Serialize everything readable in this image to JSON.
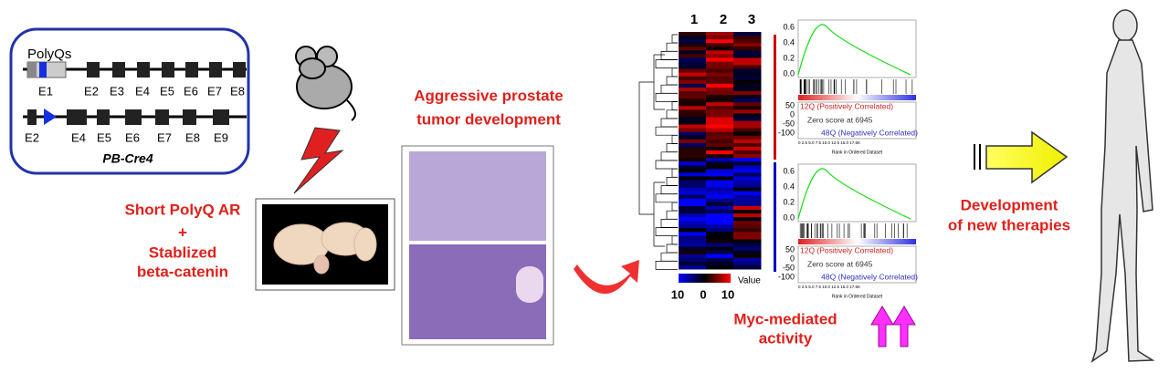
{
  "gene_box": {
    "polyq_label": "PolyQs",
    "exons_top": [
      "E1",
      "E2",
      "E3",
      "E4",
      "E5",
      "E6",
      "E7",
      "E8"
    ],
    "exons_bottom": [
      "E2",
      "E4",
      "E5",
      "E6",
      "E7",
      "E8",
      "E9"
    ],
    "name": "PB-Cre4"
  },
  "model_label": [
    "Short PolyQ AR",
    "+",
    "Stablized",
    "beta-catenin"
  ],
  "tumor_title": [
    "Aggressive prostate",
    "tumor development"
  ],
  "heatmap": {
    "columns": [
      "1",
      "2",
      "3"
    ],
    "legend_title": "Value",
    "legend_ticks": [
      "10",
      "0",
      "10"
    ]
  },
  "gsea": [
    {
      "yticks_top": [
        "0.6",
        "0.4",
        "0.2",
        "0.0"
      ],
      "yticks_bottom": [
        "50",
        "0",
        "-50",
        "-100"
      ],
      "pos_label": "12Q (Positively Correlated)",
      "zero_label": "Zero score at 6945",
      "neg_label": "48Q (Negatively Correlated)",
      "xticks": "0   2.5   5.0   7.5  10.0 12.5 15.0 17.5K",
      "xlabel": "Rank in Ordered Dataset"
    },
    {
      "yticks_top": [
        "0.6",
        "0.4",
        "0.2",
        "0.0"
      ],
      "yticks_bottom": [
        "50",
        "0",
        "-50",
        "-100"
      ],
      "pos_label": "12Q (Positively Correlated)",
      "zero_label": "Zero score at 6945",
      "neg_label": "48Q (Negatively Correlated)",
      "xticks": "0   2.5   5.0   7.5  10.0 12.5 15.0 17.5K",
      "xlabel": "Rank in Ordered Dataset"
    }
  ],
  "myc_label": [
    "Myc-mediated",
    "activity"
  ],
  "therapy_label": [
    "Development",
    "of new therapies"
  ]
}
